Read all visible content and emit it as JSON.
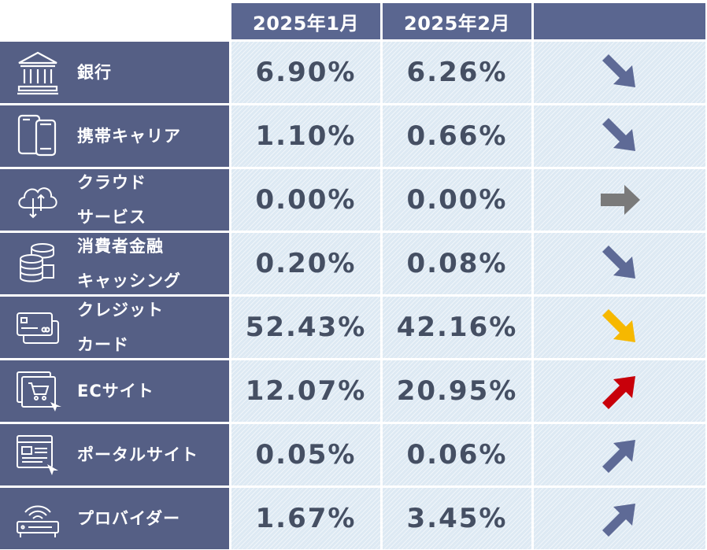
{
  "header": {
    "col1": "2025年1月",
    "col2": "2025年2月",
    "col3": ""
  },
  "rows": [
    {
      "icon": "bank-icon",
      "line1": "銀行",
      "line2": "",
      "jan": "6.90%",
      "feb": "6.26%",
      "trend": "down",
      "arrow_color": "#5e6a96"
    },
    {
      "icon": "smartphone-icon",
      "line1": "携帯キャリア",
      "line2": "",
      "jan": "1.10%",
      "feb": "0.66%",
      "trend": "down",
      "arrow_color": "#5e6a96"
    },
    {
      "icon": "cloud-icon",
      "line1": "クラウド",
      "line2": "サービス",
      "jan": "0.00%",
      "feb": "0.00%",
      "trend": "flat",
      "arrow_color": "#7a7a7a"
    },
    {
      "icon": "coins-icon",
      "line1": "消費者金融",
      "line2": "キャッシング",
      "jan": "0.20%",
      "feb": "0.08%",
      "trend": "down",
      "arrow_color": "#5e6a96"
    },
    {
      "icon": "credit-card-icon",
      "line1": "クレジット",
      "line2": "カード",
      "jan": "52.43%",
      "feb": "42.16%",
      "trend": "down",
      "arrow_color": "#f6b800"
    },
    {
      "icon": "shopping-cart-icon",
      "line1": "ECサイト",
      "line2": "",
      "jan": "12.07%",
      "feb": "20.95%",
      "trend": "up",
      "arrow_color": "#c8000a"
    },
    {
      "icon": "web-portal-icon",
      "line1": "ポータルサイト",
      "line2": "",
      "jan": "0.05%",
      "feb": "0.06%",
      "trend": "up",
      "arrow_color": "#5e6a96"
    },
    {
      "icon": "router-icon",
      "line1": "プロバイダー",
      "line2": "",
      "jan": "1.67%",
      "feb": "3.45%",
      "trend": "up",
      "arrow_color": "#5e6a96"
    }
  ]
}
